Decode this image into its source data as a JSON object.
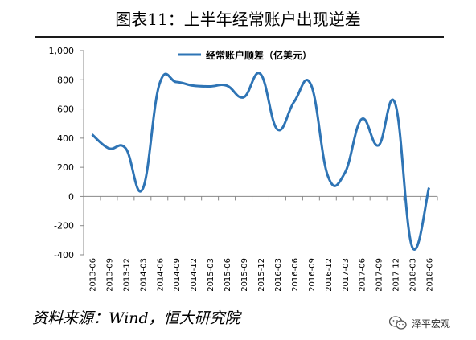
{
  "title": "图表11：上半年经常账户出现逆差",
  "source": "资料来源：Wind，恒大研究院",
  "watermark": {
    "text": "泽平宏观",
    "icon": "wechat-icon"
  },
  "series_color": "#2e74b5",
  "chart_data": {
    "type": "line",
    "x": [
      "2013-06",
      "2013-09",
      "2013-12",
      "2014-03",
      "2014-06",
      "2014-09",
      "2014-12",
      "2015-03",
      "2015-06",
      "2015-09",
      "2015-12",
      "2016-03",
      "2016-06",
      "2016-09",
      "2016-12",
      "2017-03",
      "2017-06",
      "2017-09",
      "2017-12",
      "2018-03",
      "2018-06"
    ],
    "series": [
      {
        "name": "经常账户顺差（亿美元）",
        "values": [
          425,
          330,
          330,
          50,
          770,
          785,
          760,
          755,
          760,
          680,
          840,
          460,
          650,
          765,
          140,
          160,
          530,
          350,
          635,
          -345,
          60
        ]
      }
    ],
    "ylim": [
      -400,
      1000
    ],
    "yticks": [
      "-400",
      "-200",
      "0",
      "200",
      "400",
      "600",
      "800",
      "1,000"
    ],
    "ytick_values": [
      -400,
      -200,
      0,
      200,
      400,
      600,
      800,
      1000
    ],
    "legend_position": "top-center",
    "grid": false
  }
}
